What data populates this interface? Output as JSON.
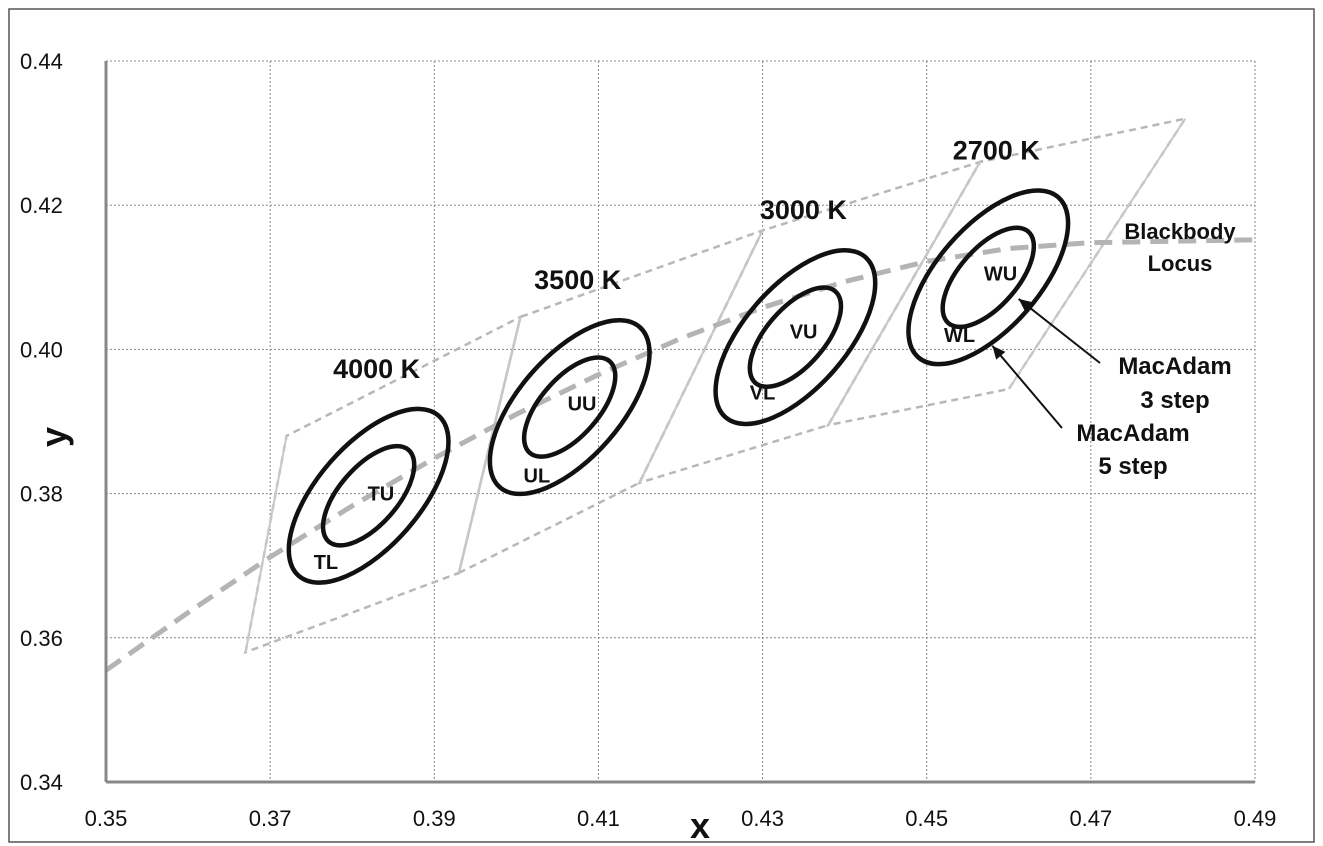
{
  "chart_data": {
    "type": "scatter",
    "title": "",
    "xlabel": "x",
    "ylabel": "y",
    "xlim": [
      0.35,
      0.49
    ],
    "ylim": [
      0.34,
      0.44
    ],
    "xticks": [
      "0.35",
      "0.37",
      "0.39",
      "0.41",
      "0.43",
      "0.45",
      "0.47",
      "0.49"
    ],
    "yticks": [
      "0.34",
      "0.36",
      "0.38",
      "0.40",
      "0.42",
      "0.44"
    ],
    "grid": true,
    "blackbody_locus": {
      "label_line1": "Blackbody",
      "label_line2": "Locus",
      "points": [
        [
          0.35,
          0.3555
        ],
        [
          0.36,
          0.3635
        ],
        [
          0.37,
          0.3712
        ],
        [
          0.38,
          0.3783
        ],
        [
          0.39,
          0.3849
        ],
        [
          0.4,
          0.391
        ],
        [
          0.41,
          0.3965
        ],
        [
          0.42,
          0.4015
        ],
        [
          0.43,
          0.4058
        ],
        [
          0.44,
          0.4094
        ],
        [
          0.45,
          0.4122
        ],
        [
          0.46,
          0.414
        ],
        [
          0.47,
          0.4148
        ],
        [
          0.48,
          0.415
        ],
        [
          0.49,
          0.4152
        ]
      ]
    },
    "quadrangles": [
      [
        [
          0.367,
          0.358
        ],
        [
          0.372,
          0.388
        ],
        [
          0.4005,
          0.4045
        ],
        [
          0.393,
          0.369
        ]
      ],
      [
        [
          0.393,
          0.369
        ],
        [
          0.4005,
          0.4045
        ],
        [
          0.43,
          0.4165
        ],
        [
          0.415,
          0.3815
        ]
      ],
      [
        [
          0.415,
          0.3815
        ],
        [
          0.43,
          0.4165
        ],
        [
          0.4565,
          0.426
        ],
        [
          0.438,
          0.3895
        ]
      ],
      [
        [
          0.438,
          0.3895
        ],
        [
          0.4565,
          0.426
        ],
        [
          0.4815,
          0.432
        ],
        [
          0.46,
          0.3945
        ]
      ]
    ],
    "ellipse_groups": [
      {
        "cct_label": "4000 K",
        "center": [
          0.382,
          0.3797
        ],
        "outer": {
          "a": 0.014,
          "b": 0.0065,
          "angle": 52.5
        },
        "inner": {
          "a": 0.008,
          "b": 0.0037,
          "angle": 52.5
        },
        "upper_label": "TU",
        "upper_point": [
          0.3835,
          0.38
        ],
        "lower_label": "TL",
        "lower_point": [
          0.3768,
          0.3705
        ]
      },
      {
        "cct_label": "3500 K",
        "center": [
          0.4065,
          0.392
        ],
        "outer": {
          "a": 0.014,
          "b": 0.0065,
          "angle": 52.5
        },
        "inner": {
          "a": 0.008,
          "b": 0.0037,
          "angle": 52.5
        },
        "upper_label": "UU",
        "upper_point": [
          0.408,
          0.3925
        ],
        "lower_label": "UL",
        "lower_point": [
          0.4025,
          0.3825
        ]
      },
      {
        "cct_label": "3000 K",
        "center": [
          0.434,
          0.4017
        ],
        "outer": {
          "a": 0.014,
          "b": 0.0065,
          "angle": 52.5
        },
        "inner": {
          "a": 0.008,
          "b": 0.0037,
          "angle": 52.5
        },
        "upper_label": "VU",
        "upper_point": [
          0.435,
          0.4025
        ],
        "lower_label": "VL",
        "lower_point": [
          0.43,
          0.394
        ]
      },
      {
        "cct_label": "2700 K",
        "center": [
          0.4575,
          0.41
        ],
        "outer": {
          "a": 0.014,
          "b": 0.0065,
          "angle": 52.5
        },
        "inner": {
          "a": 0.008,
          "b": 0.0037,
          "angle": 52.5
        },
        "upper_label": "WU",
        "upper_point": [
          0.459,
          0.4105
        ],
        "lower_label": "WL",
        "lower_point": [
          0.454,
          0.402
        ]
      }
    ],
    "annotations": [
      {
        "line1": "MacAdam",
        "line2": "3 step",
        "target": [
          0.4612,
          0.407
        ]
      },
      {
        "line1": "MacAdam",
        "line2": "5 step",
        "target": [
          0.458,
          0.4005
        ]
      }
    ]
  }
}
